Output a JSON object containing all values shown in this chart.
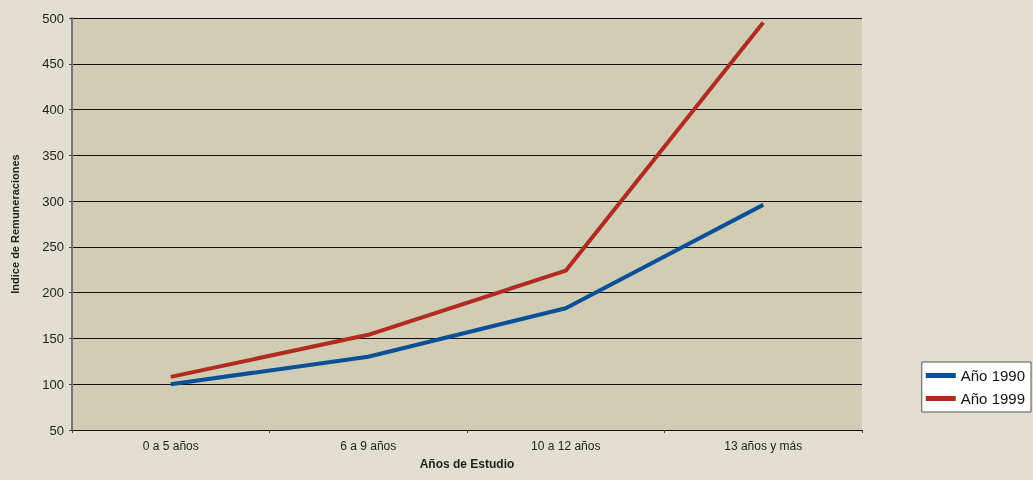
{
  "chart_data": {
    "type": "line",
    "xlabel": "Años de Estudio",
    "ylabel": "Indice de Remuneraciones",
    "categories": [
      "0 a 5 años",
      "6 a 9 años",
      "10 a 12 años",
      "13 años y más"
    ],
    "series": [
      {
        "name": "Año 1990",
        "color": "#0b4f97",
        "values": [
          100,
          130,
          183,
          296
        ]
      },
      {
        "name": "Año 1999",
        "color": "#b22b20",
        "values": [
          108,
          154,
          224,
          495
        ]
      }
    ],
    "ylim": [
      50,
      500
    ],
    "yticks": [
      50,
      100,
      150,
      200,
      250,
      300,
      350,
      400,
      450,
      500
    ],
    "grid": "y",
    "legend": "bottom right",
    "marker": "none",
    "line_style": "solid"
  }
}
